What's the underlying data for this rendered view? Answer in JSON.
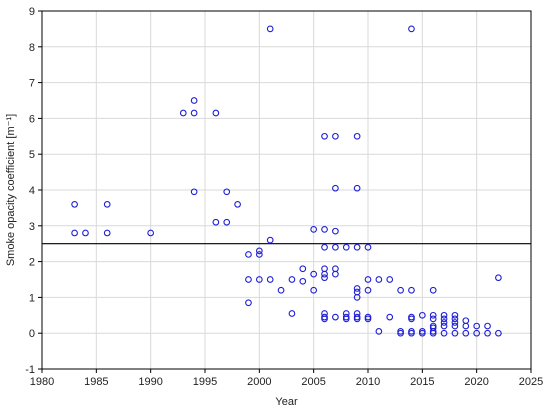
{
  "chart_data": {
    "type": "scatter",
    "title": "",
    "xlabel": "Year",
    "ylabel": "Smoke opacity coefficient [m⁻¹]",
    "xlim": [
      1980,
      2025
    ],
    "ylim": [
      -1,
      9
    ],
    "xticks": [
      1980,
      1985,
      1990,
      1995,
      2000,
      2005,
      2010,
      2015,
      2020,
      2025
    ],
    "yticks": [
      -1,
      0,
      1,
      2,
      3,
      4,
      5,
      6,
      7,
      8,
      9
    ],
    "grid": true,
    "reference_line_y": 2.5,
    "marker_color": "#1f1fd6",
    "points": [
      [
        1983,
        3.6
      ],
      [
        1983,
        2.8
      ],
      [
        1984,
        2.8
      ],
      [
        1986,
        3.6
      ],
      [
        1986,
        2.8
      ],
      [
        1990,
        2.8
      ],
      [
        1993,
        6.15
      ],
      [
        1994,
        6.15
      ],
      [
        1994,
        6.5
      ],
      [
        1994,
        3.95
      ],
      [
        1996,
        6.15
      ],
      [
        1996,
        3.1
      ],
      [
        1997,
        3.95
      ],
      [
        1997,
        3.1
      ],
      [
        1998,
        3.6
      ],
      [
        1999,
        2.2
      ],
      [
        1999,
        1.5
      ],
      [
        1999,
        0.85
      ],
      [
        2000,
        2.3
      ],
      [
        2000,
        2.2
      ],
      [
        2000,
        1.5
      ],
      [
        2001,
        8.5
      ],
      [
        2001,
        2.6
      ],
      [
        2001,
        1.5
      ],
      [
        2002,
        1.2
      ],
      [
        2003,
        1.5
      ],
      [
        2003,
        0.55
      ],
      [
        2004,
        1.8
      ],
      [
        2004,
        1.45
      ],
      [
        2005,
        2.9
      ],
      [
        2005,
        1.65
      ],
      [
        2005,
        1.2
      ],
      [
        2006,
        5.5
      ],
      [
        2006,
        2.9
      ],
      [
        2006,
        2.4
      ],
      [
        2006,
        1.8
      ],
      [
        2006,
        1.65
      ],
      [
        2006,
        1.55
      ],
      [
        2006,
        0.55
      ],
      [
        2006,
        0.45
      ],
      [
        2006,
        0.4
      ],
      [
        2007,
        5.5
      ],
      [
        2007,
        4.05
      ],
      [
        2007,
        2.85
      ],
      [
        2007,
        2.4
      ],
      [
        2007,
        1.8
      ],
      [
        2007,
        1.65
      ],
      [
        2007,
        0.45
      ],
      [
        2008,
        2.4
      ],
      [
        2008,
        0.55
      ],
      [
        2008,
        0.45
      ],
      [
        2008,
        0.4
      ],
      [
        2009,
        5.5
      ],
      [
        2009,
        4.05
      ],
      [
        2009,
        2.4
      ],
      [
        2009,
        1.25
      ],
      [
        2009,
        1.15
      ],
      [
        2009,
        1.0
      ],
      [
        2009,
        0.55
      ],
      [
        2009,
        0.45
      ],
      [
        2009,
        0.4
      ],
      [
        2010,
        2.4
      ],
      [
        2010,
        1.5
      ],
      [
        2010,
        1.2
      ],
      [
        2010,
        0.45
      ],
      [
        2010,
        0.4
      ],
      [
        2011,
        1.5
      ],
      [
        2011,
        0.05
      ],
      [
        2012,
        1.5
      ],
      [
        2012,
        0.45
      ],
      [
        2013,
        1.2
      ],
      [
        2013,
        0.0
      ],
      [
        2013,
        0.05
      ],
      [
        2014,
        8.5
      ],
      [
        2014,
        1.2
      ],
      [
        2014,
        0.45
      ],
      [
        2014,
        0.4
      ],
      [
        2014,
        0.05
      ],
      [
        2014,
        0.0
      ],
      [
        2015,
        0.5
      ],
      [
        2015,
        0.05
      ],
      [
        2015,
        0.0
      ],
      [
        2016,
        1.2
      ],
      [
        2016,
        0.5
      ],
      [
        2016,
        0.4
      ],
      [
        2016,
        0.2
      ],
      [
        2016,
        0.15
      ],
      [
        2016,
        0.05
      ],
      [
        2016,
        0.0
      ],
      [
        2017,
        0.5
      ],
      [
        2017,
        0.4
      ],
      [
        2017,
        0.3
      ],
      [
        2017,
        0.2
      ],
      [
        2017,
        0.0
      ],
      [
        2018,
        0.5
      ],
      [
        2018,
        0.4
      ],
      [
        2018,
        0.3
      ],
      [
        2018,
        0.2
      ],
      [
        2018,
        0.0
      ],
      [
        2019,
        0.35
      ],
      [
        2019,
        0.2
      ],
      [
        2019,
        0.0
      ],
      [
        2020,
        0.2
      ],
      [
        2020,
        0.0
      ],
      [
        2021,
        0.2
      ],
      [
        2021,
        0.0
      ],
      [
        2022,
        1.55
      ],
      [
        2022,
        0.0
      ]
    ]
  }
}
